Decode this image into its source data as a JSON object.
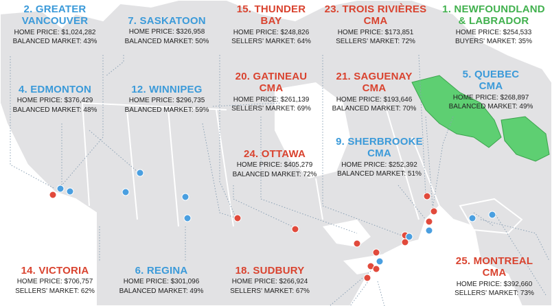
{
  "colors": {
    "land": "#e2e2e4",
    "land_border": "#ffffff",
    "water": "#ffffff",
    "highlight_province": "#5ecf72",
    "blue_marker": "#4a9fe0",
    "red_marker": "#e14a3c",
    "blue_label": "#3b9ad9",
    "red_label": "#d9432f",
    "green_label": "#41b14e"
  },
  "cities": [
    {
      "id": "greater-vancouver",
      "title": "2. GREATER\nVANCOUVER",
      "color": "blue",
      "home_price": "HOME PRICE: $1,024,282",
      "market": "BALANCED MARKET: 43%"
    },
    {
      "id": "saskatoon",
      "title": "7. SASKATOON",
      "color": "blue",
      "home_price": "HOME PRICE: $326,958",
      "market": "BALANCED MARKET: 50%"
    },
    {
      "id": "thunder-bay",
      "title": "15. THUNDER\nBAY",
      "color": "red",
      "home_price": "HOME PRICE: $248,826",
      "market": "SELLERS' MARKET: 64%"
    },
    {
      "id": "trois-rivieres",
      "title": "23. TROIS RIVIÈRES\nCMA",
      "color": "red",
      "home_price": "HOME PRICE: $173,851",
      "market": "SELLERS' MARKET: 72%"
    },
    {
      "id": "newfoundland",
      "title": "1. NEWFOUNDLAND\n& LABRADOR",
      "color": "green",
      "home_price": "HOME PRICE: $254,533",
      "market": "BUYERS' MARKET: 35%"
    },
    {
      "id": "edmonton",
      "title": "4. EDMONTON",
      "color": "blue",
      "home_price": "HOME PRICE: $376,429",
      "market": "BALANCED MARKET: 48%"
    },
    {
      "id": "winnipeg",
      "title": "12. WINNIPEG",
      "color": "blue",
      "home_price": "HOME PRICE: $296,735",
      "market": "BALANCED MARKET: 59%"
    },
    {
      "id": "gatineau",
      "title": "20. GATINEAU\nCMA",
      "color": "red",
      "home_price": "HOME PRICE: $261,139",
      "market": "SELLERS' MARKET: 69%"
    },
    {
      "id": "saguenay",
      "title": "21. SAGUENAY\nCMA",
      "color": "red",
      "home_price": "HOME PRICE: $193,646",
      "market": "BALANCED MARKET: 70%"
    },
    {
      "id": "quebec",
      "title": "5. QUEBEC\nCMA",
      "color": "blue",
      "home_price": "HOME PRICE: $268,897",
      "market": "BALANCED MARKET: 49%"
    },
    {
      "id": "ottawa",
      "title": "24. OTTAWA",
      "color": "red",
      "home_price": "HOME PRICE: $405,279",
      "market": "BALANCED MARKET: 72%"
    },
    {
      "id": "sherbrooke",
      "title": "9. SHERBROOKE\nCMA",
      "color": "blue",
      "home_price": "HOME PRICE: $252,392",
      "market": "BALANCED MARKET: 51%"
    },
    {
      "id": "victoria",
      "title": "14. VICTORIA",
      "color": "red",
      "home_price": "HOME PRICE: $706,757",
      "market": "SELLERS' MARKET: 62%"
    },
    {
      "id": "regina",
      "title": "6. REGINA",
      "color": "blue",
      "home_price": "HOME PRICE: $301,096",
      "market": "BALANCED MARKET: 49%"
    },
    {
      "id": "sudbury",
      "title": "18. SUDBURY",
      "color": "red",
      "home_price": "HOME PRICE: $266,924",
      "market": "SELLERS' MARKET: 67%"
    },
    {
      "id": "montreal",
      "title": "25. MONTREAL\nCMA",
      "color": "red",
      "home_price": "HOME PRICE: $392,660",
      "market": "SELLERS' MARKET: 73%"
    }
  ],
  "markers": [
    {
      "color": "red"
    },
    {
      "color": "blue"
    },
    {
      "color": "blue"
    },
    {
      "color": "blue"
    },
    {
      "color": "blue"
    },
    {
      "color": "blue"
    },
    {
      "color": "blue"
    },
    {
      "color": "red"
    },
    {
      "color": "red"
    },
    {
      "color": "red"
    },
    {
      "color": "red"
    },
    {
      "color": "red"
    },
    {
      "color": "red"
    },
    {
      "color": "blue"
    },
    {
      "color": "blue"
    },
    {
      "color": "red"
    },
    {
      "color": "red"
    },
    {
      "color": "red"
    },
    {
      "color": "blue"
    },
    {
      "color": "blue"
    },
    {
      "color": "red"
    },
    {
      "color": "red"
    },
    {
      "color": "red"
    },
    {
      "color": "blue"
    }
  ]
}
